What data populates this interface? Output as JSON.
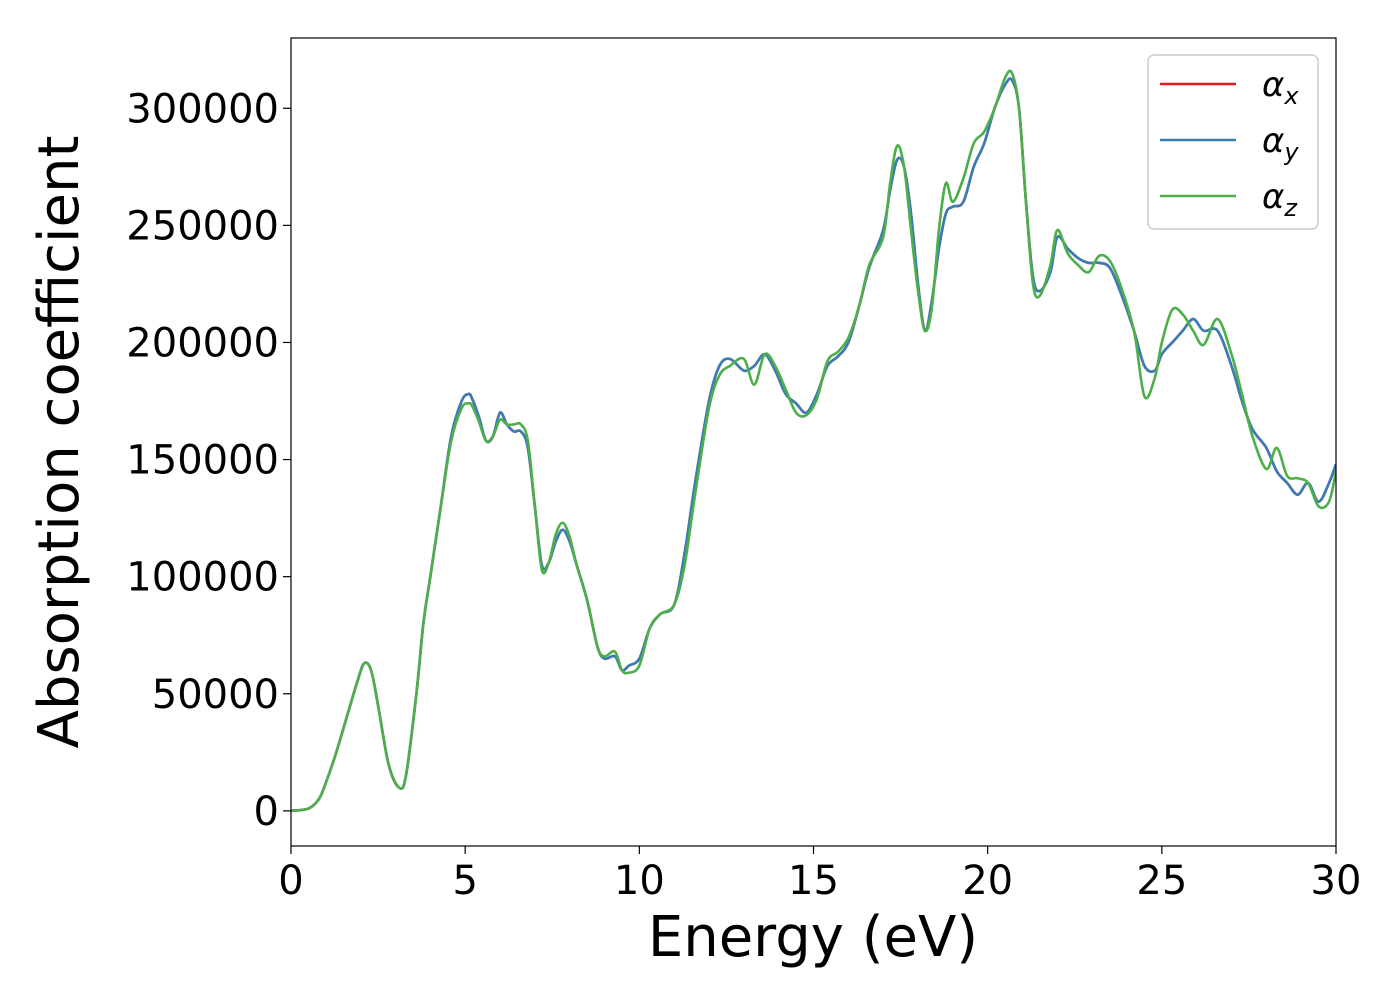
{
  "chart_data": {
    "type": "line",
    "title": "",
    "xlabel": "Energy (eV)",
    "ylabel": "Absorption coefficient",
    "xlim": [
      0,
      30
    ],
    "ylim": [
      -15000,
      330000
    ],
    "xticks": [
      0,
      5,
      10,
      15,
      20,
      25,
      30
    ],
    "xtick_labels": [
      "0",
      "5",
      "10",
      "15",
      "20",
      "25",
      "30"
    ],
    "yticks": [
      0,
      50000,
      100000,
      150000,
      200000,
      250000,
      300000
    ],
    "ytick_labels": [
      "0",
      "50000",
      "100000",
      "150000",
      "200000",
      "250000",
      "300000"
    ],
    "grid": false,
    "legend_position": "top-right",
    "legend_entries": [
      {
        "main": "α",
        "sub": "x"
      },
      {
        "main": "α",
        "sub": "y"
      },
      {
        "main": "α",
        "sub": "z"
      }
    ],
    "series": [
      {
        "name": "αx",
        "color": "#e41a1c",
        "x": [
          0,
          0.5,
          0.8,
          1.0,
          1.3,
          1.6,
          1.9,
          2.1,
          2.3,
          2.5,
          2.8,
          3.1,
          3.3,
          3.6,
          3.8,
          4.0,
          4.3,
          4.6,
          4.9,
          5.1,
          5.2,
          5.4,
          5.6,
          5.8,
          6.0,
          6.2,
          6.4,
          6.6,
          6.8,
          7.0,
          7.2,
          7.4,
          7.6,
          7.8,
          8.0,
          8.2,
          8.5,
          8.8,
          9.0,
          9.3,
          9.5,
          9.7,
          10.0,
          10.3,
          10.6,
          11.0,
          11.3,
          11.6,
          12.0,
          12.3,
          12.6,
          13.0,
          13.3,
          13.6,
          13.9,
          14.2,
          14.5,
          14.8,
          15.1,
          15.4,
          15.7,
          16.0,
          16.3,
          16.6,
          17.0,
          17.2,
          17.4,
          17.6,
          17.8,
          18.0,
          18.2,
          18.4,
          18.6,
          18.8,
          19.0,
          19.3,
          19.6,
          19.9,
          20.2,
          20.5,
          20.7,
          20.9,
          21.1,
          21.3,
          21.5,
          21.8,
          22.0,
          22.3,
          22.6,
          22.9,
          23.2,
          23.5,
          23.8,
          24.2,
          24.5,
          24.8,
          25.0,
          25.3,
          25.6,
          25.9,
          26.2,
          26.6,
          27.0,
          27.3,
          27.6,
          28.0,
          28.3,
          28.6,
          28.9,
          29.2,
          29.5,
          29.8,
          30.0
        ],
        "y": [
          0,
          1000,
          5000,
          12000,
          25000,
          40000,
          55000,
          63000,
          60000,
          45000,
          20000,
          10000,
          15000,
          50000,
          80000,
          100000,
          130000,
          160000,
          175000,
          178000,
          176000,
          168000,
          158000,
          160000,
          170000,
          165000,
          162000,
          162000,
          155000,
          130000,
          105000,
          106000,
          115000,
          120000,
          115000,
          105000,
          90000,
          70000,
          65000,
          66000,
          60000,
          62000,
          65000,
          78000,
          84000,
          88000,
          110000,
          140000,
          175000,
          190000,
          193000,
          188000,
          190000,
          195000,
          188000,
          178000,
          174000,
          170000,
          178000,
          190000,
          194000,
          200000,
          215000,
          232000,
          248000,
          265000,
          278000,
          275000,
          255000,
          225000,
          205000,
          218000,
          240000,
          255000,
          258000,
          260000,
          275000,
          285000,
          300000,
          310000,
          312000,
          300000,
          260000,
          228000,
          222000,
          230000,
          245000,
          240000,
          236000,
          234000,
          234000,
          232000,
          222000,
          205000,
          190000,
          188000,
          195000,
          200000,
          205000,
          210000,
          205000,
          205000,
          190000,
          175000,
          163000,
          155000,
          145000,
          140000,
          135000,
          140000,
          132000,
          140000,
          148000
        ]
      },
      {
        "name": "αy",
        "color": "#377eb8",
        "x": [
          0,
          0.5,
          0.8,
          1.0,
          1.3,
          1.6,
          1.9,
          2.1,
          2.3,
          2.5,
          2.8,
          3.1,
          3.3,
          3.6,
          3.8,
          4.0,
          4.3,
          4.6,
          4.9,
          5.1,
          5.2,
          5.4,
          5.6,
          5.8,
          6.0,
          6.2,
          6.4,
          6.6,
          6.8,
          7.0,
          7.2,
          7.4,
          7.6,
          7.8,
          8.0,
          8.2,
          8.5,
          8.8,
          9.0,
          9.3,
          9.5,
          9.7,
          10.0,
          10.3,
          10.6,
          11.0,
          11.3,
          11.6,
          12.0,
          12.3,
          12.6,
          13.0,
          13.3,
          13.6,
          13.9,
          14.2,
          14.5,
          14.8,
          15.1,
          15.4,
          15.7,
          16.0,
          16.3,
          16.6,
          17.0,
          17.2,
          17.4,
          17.6,
          17.8,
          18.0,
          18.2,
          18.4,
          18.6,
          18.8,
          19.0,
          19.3,
          19.6,
          19.9,
          20.2,
          20.5,
          20.7,
          20.9,
          21.1,
          21.3,
          21.5,
          21.8,
          22.0,
          22.3,
          22.6,
          22.9,
          23.2,
          23.5,
          23.8,
          24.2,
          24.5,
          24.8,
          25.0,
          25.3,
          25.6,
          25.9,
          26.2,
          26.6,
          27.0,
          27.3,
          27.6,
          28.0,
          28.3,
          28.6,
          28.9,
          29.2,
          29.5,
          29.8,
          30.0
        ],
        "y": [
          0,
          1000,
          5000,
          12000,
          25000,
          40000,
          55000,
          63000,
          60000,
          45000,
          20000,
          10000,
          15000,
          50000,
          80000,
          100000,
          130000,
          160000,
          175000,
          178000,
          176000,
          168000,
          158000,
          160000,
          170000,
          165000,
          162000,
          162000,
          155000,
          130000,
          105000,
          106000,
          115000,
          120000,
          115000,
          105000,
          90000,
          70000,
          65000,
          66000,
          60000,
          62000,
          65000,
          78000,
          84000,
          88000,
          110000,
          140000,
          175000,
          190000,
          193000,
          188000,
          190000,
          195000,
          188000,
          178000,
          174000,
          170000,
          178000,
          190000,
          194000,
          200000,
          215000,
          232000,
          248000,
          265000,
          278000,
          275000,
          255000,
          225000,
          205000,
          218000,
          240000,
          255000,
          258000,
          260000,
          275000,
          285000,
          300000,
          310000,
          312000,
          300000,
          260000,
          228000,
          222000,
          230000,
          245000,
          240000,
          236000,
          234000,
          234000,
          232000,
          222000,
          205000,
          190000,
          188000,
          195000,
          200000,
          205000,
          210000,
          205000,
          205000,
          190000,
          175000,
          163000,
          155000,
          145000,
          140000,
          135000,
          140000,
          132000,
          140000,
          148000
        ]
      },
      {
        "name": "αz",
        "color": "#4daf4a",
        "x": [
          0,
          0.5,
          0.8,
          1.0,
          1.3,
          1.6,
          1.9,
          2.1,
          2.3,
          2.5,
          2.8,
          3.1,
          3.3,
          3.6,
          3.8,
          4.0,
          4.3,
          4.6,
          4.9,
          5.1,
          5.2,
          5.4,
          5.6,
          5.8,
          6.0,
          6.2,
          6.4,
          6.6,
          6.8,
          7.0,
          7.2,
          7.4,
          7.6,
          7.8,
          8.0,
          8.2,
          8.5,
          8.8,
          9.0,
          9.3,
          9.5,
          9.7,
          10.0,
          10.3,
          10.6,
          11.0,
          11.3,
          11.6,
          12.0,
          12.3,
          12.6,
          13.0,
          13.3,
          13.6,
          13.9,
          14.2,
          14.5,
          14.8,
          15.1,
          15.4,
          15.7,
          16.0,
          16.3,
          16.6,
          17.0,
          17.2,
          17.4,
          17.6,
          17.8,
          18.0,
          18.2,
          18.4,
          18.6,
          18.8,
          19.0,
          19.3,
          19.6,
          19.9,
          20.2,
          20.5,
          20.7,
          20.9,
          21.1,
          21.3,
          21.5,
          21.8,
          22.0,
          22.3,
          22.6,
          22.9,
          23.2,
          23.5,
          23.8,
          24.2,
          24.5,
          24.8,
          25.0,
          25.3,
          25.6,
          25.9,
          26.2,
          26.6,
          27.0,
          27.3,
          27.6,
          28.0,
          28.3,
          28.6,
          28.9,
          29.2,
          29.5,
          29.8,
          30.0
        ],
        "y": [
          0,
          1000,
          5000,
          12000,
          25000,
          40000,
          55000,
          63000,
          60000,
          45000,
          20000,
          10000,
          15000,
          50000,
          80000,
          100000,
          130000,
          158000,
          172000,
          174000,
          173000,
          166000,
          158000,
          160000,
          167000,
          165000,
          165000,
          165000,
          158000,
          130000,
          103000,
          106000,
          118000,
          123000,
          117000,
          105000,
          90000,
          70000,
          66000,
          68000,
          60000,
          59000,
          62000,
          78000,
          84000,
          88000,
          105000,
          135000,
          172000,
          186000,
          190000,
          193000,
          182000,
          195000,
          190000,
          180000,
          170000,
          169000,
          176000,
          192000,
          196000,
          202000,
          215000,
          233000,
          245000,
          268000,
          284000,
          275000,
          248000,
          222000,
          205000,
          215000,
          248000,
          268000,
          260000,
          270000,
          285000,
          290000,
          300000,
          313000,
          315000,
          300000,
          260000,
          225000,
          220000,
          233000,
          248000,
          238000,
          233000,
          230000,
          237000,
          235000,
          225000,
          205000,
          177000,
          185000,
          200000,
          214000,
          212000,
          205000,
          199000,
          210000,
          195000,
          178000,
          160000,
          146000,
          155000,
          143000,
          142000,
          140000,
          130000,
          132000,
          145000
        ]
      }
    ]
  }
}
